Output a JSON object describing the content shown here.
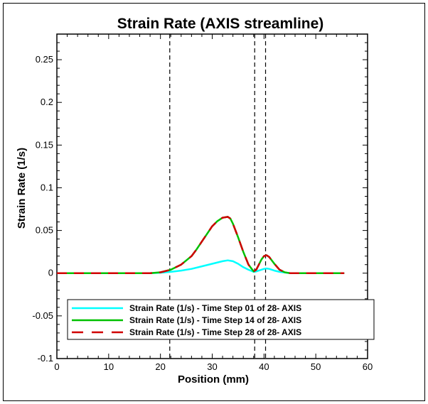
{
  "chart_data": {
    "type": "line",
    "title": "Strain Rate (AXIS streamline)",
    "xlabel": "Position (mm)",
    "ylabel": "Strain Rate (1/s)",
    "xlim": [
      0,
      60
    ],
    "ylim": [
      -0.1,
      0.28
    ],
    "xticks": [
      "0",
      "10",
      "20",
      "30",
      "40",
      "50",
      "60"
    ],
    "yticks": [
      "-0.1",
      "-0.05",
      "0",
      "0.05",
      "0.1",
      "0.15",
      "0.2",
      "0.25"
    ],
    "vlines": [
      21.8,
      38.2,
      40.3
    ],
    "grid": false,
    "legend_position": "bottom",
    "series": [
      {
        "name": "Strain Rate (1/s) - Time Step 01 of 28- AXIS",
        "color": "#00ffff",
        "dash": "solid",
        "x": [
          0,
          10,
          18,
          20,
          22,
          24,
          26,
          28,
          30,
          32,
          33,
          34,
          35,
          36,
          37,
          38,
          38.5,
          39,
          40,
          40.5,
          41,
          42,
          43,
          45,
          50,
          55.5
        ],
        "y": [
          0,
          0,
          0,
          0.0005,
          0.0015,
          0.003,
          0.005,
          0.008,
          0.011,
          0.014,
          0.015,
          0.014,
          0.011,
          0.007,
          0.004,
          0.0015,
          0.002,
          0.003,
          0.005,
          0.0055,
          0.005,
          0.003,
          0.0015,
          0,
          0,
          0
        ]
      },
      {
        "name": "Strain Rate (1/s) - Time Step 14 of 28- AXIS",
        "color": "#00c000",
        "dash": "solid",
        "x": [
          0,
          10,
          18,
          20,
          22,
          24,
          26,
          27,
          28,
          29,
          30,
          31,
          32,
          33,
          33.5,
          34,
          35,
          36,
          37,
          38,
          38.5,
          39,
          39.5,
          40,
          40.5,
          41,
          42,
          43,
          44,
          45,
          50,
          55.5
        ],
        "y": [
          0,
          0,
          0,
          0.001,
          0.004,
          0.01,
          0.02,
          0.028,
          0.037,
          0.046,
          0.055,
          0.061,
          0.065,
          0.066,
          0.064,
          0.058,
          0.042,
          0.025,
          0.01,
          0.002,
          0.004,
          0.01,
          0.016,
          0.02,
          0.021,
          0.019,
          0.011,
          0.004,
          0.001,
          0,
          0,
          0
        ]
      },
      {
        "name": "Strain Rate (1/s) - Time Step 28 of 28- AXIS",
        "color": "#d00000",
        "dash": "dashed",
        "x": [
          0,
          10,
          18,
          20,
          22,
          24,
          26,
          27,
          28,
          29,
          30,
          31,
          32,
          33,
          33.5,
          34,
          35,
          36,
          37,
          38,
          38.5,
          39,
          39.5,
          40,
          40.5,
          41,
          42,
          43,
          44,
          45,
          50,
          55.5
        ],
        "y": [
          0,
          0,
          0,
          0.001,
          0.004,
          0.01,
          0.02,
          0.028,
          0.037,
          0.046,
          0.055,
          0.061,
          0.065,
          0.066,
          0.064,
          0.058,
          0.042,
          0.025,
          0.01,
          0.002,
          0.004,
          0.01,
          0.016,
          0.02,
          0.021,
          0.019,
          0.011,
          0.004,
          0.001,
          0,
          0,
          0
        ]
      }
    ]
  }
}
